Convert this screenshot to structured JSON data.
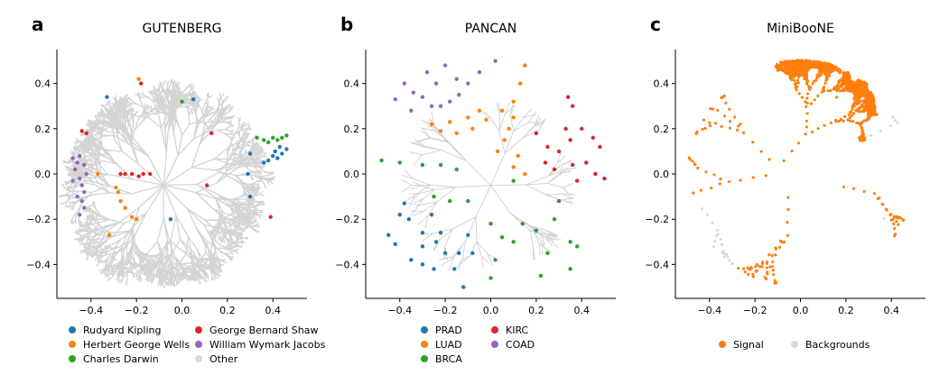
{
  "chart_data": [
    {
      "type": "scatter",
      "panel_letter": "a",
      "title": "GUTENBERG",
      "xlim": [
        -0.55,
        0.55
      ],
      "ylim": [
        -0.55,
        0.55
      ],
      "x_ticks": [
        -0.4,
        -0.2,
        0.0,
        0.2,
        0.4
      ],
      "x_tick_labels": [
        "−0.4",
        "−0.2",
        "0.0",
        "0.2",
        "0.4"
      ],
      "y_ticks": [
        -0.4,
        -0.2,
        0.0,
        0.2,
        0.4
      ],
      "y_tick_labels": [
        "−0.4",
        "−0.2",
        "0.0",
        "0.2",
        "0.4"
      ],
      "legend_columns": 2,
      "series": [
        {
          "name": "Rudyard Kipling",
          "color": "#1f77b4",
          "points": [
            [
              0.4,
              0.08
            ],
            [
              0.42,
              0.07
            ],
            [
              0.44,
              0.09
            ],
            [
              0.46,
              0.11
            ],
            [
              0.38,
              0.06
            ],
            [
              0.36,
              0.05
            ],
            [
              0.41,
              0.1
            ],
            [
              0.43,
              0.12
            ],
            [
              0.3,
              -0.1
            ],
            [
              0.29,
              0.0
            ],
            [
              -0.05,
              -0.2
            ],
            [
              -0.33,
              0.34
            ],
            [
              0.05,
              0.33
            ],
            [
              0.3,
              0.09
            ]
          ]
        },
        {
          "name": "Herbert George Wells",
          "color": "#ff7f0e",
          "points": [
            [
              -0.28,
              -0.08
            ],
            [
              -0.27,
              -0.12
            ],
            [
              -0.25,
              -0.15
            ],
            [
              -0.22,
              -0.19
            ],
            [
              -0.2,
              -0.2
            ],
            [
              -0.29,
              -0.06
            ],
            [
              -0.19,
              0.42
            ],
            [
              -0.32,
              -0.27
            ],
            [
              -0.37,
              0.0
            ]
          ]
        },
        {
          "name": "Charles Darwin",
          "color": "#2ca02c",
          "points": [
            [
              0.33,
              0.16
            ],
            [
              0.36,
              0.15
            ],
            [
              0.4,
              0.16
            ],
            [
              0.44,
              0.16
            ],
            [
              0.46,
              0.17
            ],
            [
              0.38,
              0.14
            ],
            [
              0.42,
              0.15
            ],
            [
              0.0,
              0.32
            ]
          ]
        },
        {
          "name": "George Bernard Shaw",
          "color": "#d62728",
          "points": [
            [
              -0.27,
              0.0
            ],
            [
              -0.25,
              0.0
            ],
            [
              -0.22,
              0.0
            ],
            [
              -0.19,
              -0.01
            ],
            [
              -0.17,
              0.0
            ],
            [
              -0.14,
              0.0
            ],
            [
              -0.44,
              0.19
            ],
            [
              -0.42,
              0.18
            ],
            [
              0.13,
              0.18
            ],
            [
              0.11,
              -0.05
            ],
            [
              -0.18,
              0.4
            ],
            [
              0.39,
              -0.19
            ]
          ]
        },
        {
          "name": "William Wymark Jacobs",
          "color": "#9467bd",
          "points": [
            [
              -0.46,
              0.05
            ],
            [
              -0.47,
              0.02
            ],
            [
              -0.45,
              -0.02
            ],
            [
              -0.44,
              -0.05
            ],
            [
              -0.43,
              -0.08
            ],
            [
              -0.44,
              -0.12
            ],
            [
              -0.43,
              -0.15
            ],
            [
              -0.45,
              -0.18
            ],
            [
              -0.48,
              0.07
            ],
            [
              -0.42,
              0.0
            ],
            [
              -0.43,
              0.04
            ],
            [
              -0.46,
              -0.1
            ],
            [
              -0.45,
              0.08
            ],
            [
              -0.48,
              -0.03
            ]
          ]
        },
        {
          "name": "Other",
          "color": "#d9d9d9",
          "points": []
        }
      ]
    },
    {
      "type": "scatter",
      "panel_letter": "b",
      "title": "PANCAN",
      "xlim": [
        -0.55,
        0.55
      ],
      "ylim": [
        -0.55,
        0.55
      ],
      "x_ticks": [
        -0.4,
        -0.2,
        0.0,
        0.2,
        0.4
      ],
      "x_tick_labels": [
        "−0.4",
        "−0.2",
        "0.0",
        "0.2",
        "0.4"
      ],
      "y_ticks": [
        -0.4,
        -0.2,
        0.0,
        0.2,
        0.4
      ],
      "y_tick_labels": [
        "−0.4",
        "−0.2",
        "0.0",
        "0.2",
        "0.4"
      ],
      "legend_columns": 2,
      "series": [
        {
          "name": "PRAD",
          "color": "#1f77b4",
          "points": [
            [
              -0.4,
              -0.18
            ],
            [
              -0.36,
              -0.2
            ],
            [
              -0.3,
              -0.26
            ],
            [
              -0.24,
              -0.3
            ],
            [
              -0.2,
              -0.35
            ],
            [
              -0.16,
              -0.42
            ],
            [
              -0.12,
              -0.5
            ],
            [
              -0.35,
              -0.38
            ],
            [
              -0.3,
              -0.4
            ],
            [
              -0.25,
              -0.42
            ],
            [
              -0.45,
              -0.27
            ],
            [
              -0.42,
              -0.31
            ],
            [
              -0.26,
              -0.18
            ],
            [
              -0.22,
              -0.26
            ],
            [
              -0.1,
              -0.27
            ],
            [
              -0.14,
              -0.35
            ],
            [
              -0.08,
              -0.35
            ],
            [
              -0.38,
              -0.13
            ],
            [
              -0.3,
              -0.32
            ]
          ]
        },
        {
          "name": "LUAD",
          "color": "#ff7f0e",
          "points": [
            [
              0.15,
              0.48
            ],
            [
              0.13,
              0.4
            ],
            [
              0.1,
              0.32
            ],
            [
              0.05,
              0.28
            ],
            [
              -0.02,
              0.24
            ],
            [
              -0.08,
              0.2
            ],
            [
              -0.15,
              0.18
            ],
            [
              -0.22,
              0.19
            ],
            [
              -0.26,
              0.22
            ],
            [
              0.1,
              0.25
            ],
            [
              0.08,
              0.2
            ],
            [
              0.06,
              0.15
            ],
            [
              0.03,
              0.1
            ],
            [
              0.1,
              0.03
            ],
            [
              0.15,
              0.0
            ],
            [
              -0.05,
              0.28
            ],
            [
              -0.1,
              0.25
            ],
            [
              -0.18,
              0.23
            ],
            [
              0.12,
              0.08
            ]
          ]
        },
        {
          "name": "BRCA",
          "color": "#2ca02c",
          "points": [
            [
              -0.48,
              0.06
            ],
            [
              -0.4,
              0.05
            ],
            [
              -0.3,
              0.04
            ],
            [
              -0.22,
              0.04
            ],
            [
              -0.15,
              0.02
            ],
            [
              -0.25,
              -0.1
            ],
            [
              -0.18,
              -0.12
            ],
            [
              -0.1,
              -0.12
            ],
            [
              0.0,
              -0.22
            ],
            [
              0.05,
              -0.28
            ],
            [
              0.1,
              -0.3
            ],
            [
              0.2,
              -0.25
            ],
            [
              0.28,
              -0.2
            ],
            [
              0.35,
              -0.3
            ],
            [
              0.38,
              -0.32
            ],
            [
              0.25,
              -0.35
            ],
            [
              0.22,
              -0.45
            ],
            [
              0.02,
              -0.38
            ],
            [
              0.0,
              -0.46
            ],
            [
              0.14,
              -0.22
            ],
            [
              0.3,
              -0.12
            ],
            [
              0.1,
              -0.03
            ],
            [
              0.35,
              -0.42
            ]
          ]
        },
        {
          "name": "KIRC",
          "color": "#d62728",
          "points": [
            [
              0.2,
              0.18
            ],
            [
              0.25,
              0.12
            ],
            [
              0.3,
              0.1
            ],
            [
              0.35,
              0.15
            ],
            [
              0.4,
              0.2
            ],
            [
              0.45,
              0.16
            ],
            [
              0.48,
              0.12
            ],
            [
              0.42,
              0.05
            ],
            [
              0.46,
              0.0
            ],
            [
              0.5,
              -0.02
            ],
            [
              0.36,
              0.3
            ],
            [
              0.34,
              0.34
            ],
            [
              0.36,
              0.04
            ],
            [
              0.38,
              -0.03
            ],
            [
              0.24,
              0.05
            ],
            [
              0.28,
              0.02
            ],
            [
              0.33,
              0.2
            ]
          ]
        },
        {
          "name": "COAD",
          "color": "#9467bd",
          "points": [
            [
              -0.38,
              0.4
            ],
            [
              -0.34,
              0.36
            ],
            [
              -0.3,
              0.34
            ],
            [
              -0.26,
              0.3
            ],
            [
              -0.22,
              0.3
            ],
            [
              -0.18,
              0.32
            ],
            [
              -0.14,
              0.35
            ],
            [
              -0.1,
              0.4
            ],
            [
              -0.05,
              0.45
            ],
            [
              0.02,
              0.5
            ],
            [
              -0.35,
              0.28
            ],
            [
              -0.42,
              0.33
            ],
            [
              -0.24,
              0.4
            ],
            [
              -0.28,
              0.45
            ],
            [
              -0.2,
              0.48
            ],
            [
              -0.15,
              0.42
            ]
          ]
        }
      ]
    },
    {
      "type": "scatter",
      "panel_letter": "c",
      "title": "MiniBooNE",
      "xlim": [
        -0.55,
        0.55
      ],
      "ylim": [
        -0.55,
        0.55
      ],
      "x_ticks": [
        -0.4,
        -0.2,
        0.0,
        0.2,
        0.4
      ],
      "x_tick_labels": [
        "−0.4",
        "−0.2",
        "0.0",
        "0.2",
        "0.4"
      ],
      "y_ticks": [
        -0.4,
        -0.2,
        0.0,
        0.2,
        0.4
      ],
      "y_tick_labels": [
        "−0.4",
        "−0.2",
        "0.0",
        "0.2",
        "0.4"
      ],
      "legend_columns": 2,
      "series": [
        {
          "name": "Signal",
          "color": "#ff7f0e",
          "points": []
        },
        {
          "name": "Backgrounds",
          "color": "#d9d9d9",
          "points": []
        }
      ]
    }
  ]
}
